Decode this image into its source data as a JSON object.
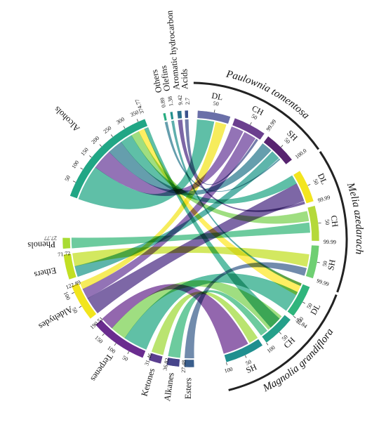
{
  "chart_data": {
    "type": "chord",
    "chemical_classes": [
      {
        "name": "Acids",
        "total": "2.7",
        "color": "#3b518b"
      },
      {
        "name": "Aromatic hydrocarbon",
        "total": "9.42",
        "color": "#2c728e"
      },
      {
        "name": "Olefins",
        "total": "1.38",
        "color": "#21908d"
      },
      {
        "name": "Others",
        "total": "0.89",
        "color": "#27ad81"
      },
      {
        "name": "Alcohols",
        "total": "374.77",
        "color": "#21a685"
      },
      {
        "name": "Phenols",
        "total": "27.77",
        "color": "#a8db34"
      },
      {
        "name": "Ethers",
        "total": "71.72",
        "color": "#c2df23"
      },
      {
        "name": "Aldehydes",
        "total": "122.89",
        "color": "#f2e51d"
      },
      {
        "name": "Terpenes",
        "total": "190.51",
        "color": "#6a2c8f"
      },
      {
        "name": "Ketones",
        "total": "31.46",
        "color": "#5b3f8f"
      },
      {
        "name": "Alkanes",
        "total": "36.82",
        "color": "#46448b"
      },
      {
        "name": "Esters",
        "total": "27.48",
        "color": "#3a5e8c"
      }
    ],
    "samples": [
      {
        "species": "Paulownia tomentosa",
        "part": "DL",
        "total": "",
        "color": "#6a6fa8"
      },
      {
        "species": "Paulownia tomentosa",
        "part": "CH",
        "total": "99.99",
        "color": "#6b3f8e"
      },
      {
        "species": "Paulownia tomentosa",
        "part": "SH",
        "total": "100.0",
        "color": "#57236f"
      },
      {
        "species": "Melia azedarach",
        "part": "DL",
        "total": "99.99",
        "color": "#f3e51f"
      },
      {
        "species": "Melia azedarach",
        "part": "CH",
        "total": "99.99",
        "color": "#b5d93a"
      },
      {
        "species": "Melia azedarach",
        "part": "SH",
        "total": "99.99",
        "color": "#6fcf73"
      },
      {
        "species": "Magnolia grandiflora",
        "part": "DL",
        "total": "97.84",
        "color": "#2fb57c"
      },
      {
        "species": "Magnolia grandiflora",
        "part": "CH",
        "total": "",
        "color": "#25a08a"
      },
      {
        "species": "Magnolia grandiflora",
        "part": "SH",
        "total": "",
        "color": "#1f8f8f"
      }
    ],
    "species": [
      "Paulownia tomentosa",
      "Melia azedarach",
      "Magnolia grandiflora"
    ],
    "axis_ticks": {
      "Alcohols": [
        "50",
        "100",
        "150",
        "200",
        "250",
        "300",
        "350"
      ],
      "Aldehydes": [
        "50",
        "100"
      ],
      "Terpenes": [
        "50",
        "100",
        "150"
      ],
      "sample": [
        "50"
      ],
      "sample_end": "100"
    }
  }
}
